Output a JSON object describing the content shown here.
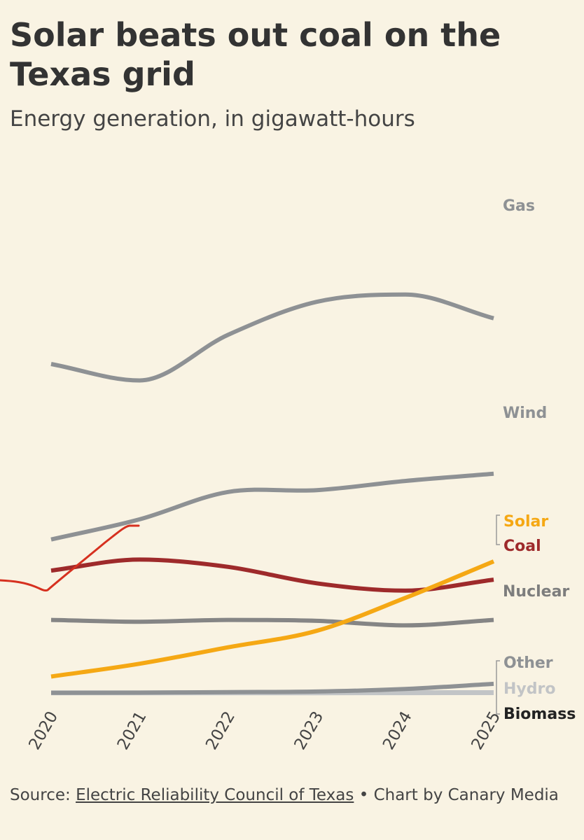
{
  "title": "Solar beats out coal on the Texas grid",
  "subtitle": "Energy generation, in gigawatt-hours",
  "footer": {
    "source_prefix": "Source:",
    "source_link": "Electric Reliability Council of Texas",
    "separator": "•",
    "credit": "Chart by Canary Media"
  },
  "chart_data": {
    "type": "line",
    "x": [
      2020,
      2021,
      2022,
      2023,
      2024,
      2025
    ],
    "x_ticks": [
      "2020",
      "2021",
      "2022",
      "2023",
      "2024",
      "2025"
    ],
    "ylim": [
      0,
      270000
    ],
    "grid": false,
    "legend": "direct labels at line ends (right)",
    "series": [
      {
        "name": "Gas",
        "color": "#8e9194",
        "values": [
          180000,
          171000,
          196000,
          214000,
          218000,
          205000
        ]
      },
      {
        "name": "Wind",
        "color": "#8e9194",
        "values": [
          84000,
          95000,
          110000,
          111000,
          116000,
          120000
        ]
      },
      {
        "name": "Solar",
        "color": "#f5a814",
        "values": [
          9000,
          16000,
          25000,
          34000,
          52000,
          72000
        ]
      },
      {
        "name": "Coal",
        "color": "#9e2a2b",
        "values": [
          67000,
          73000,
          69000,
          60000,
          56000,
          62000
        ]
      },
      {
        "name": "Nuclear",
        "color": "#858585",
        "values": [
          40000,
          39000,
          40000,
          39500,
          37000,
          40000
        ]
      },
      {
        "name": "Other",
        "color": "#8e9194",
        "values": [
          100,
          200,
          500,
          800,
          2200,
          5000
        ]
      },
      {
        "name": "Hydro",
        "color": "#c2c4c6",
        "values": [
          80,
          80,
          100,
          120,
          150,
          200
        ]
      },
      {
        "name": "Biomass",
        "color": "#333333",
        "values": [
          0,
          0,
          0,
          0,
          0,
          0
        ]
      }
    ]
  },
  "colors": {
    "background": "#f9f3e3",
    "gray_series": "#8e9194",
    "solar": "#f5a814",
    "coal": "#9e2a2b",
    "annotation_stroke": "#d6301f"
  }
}
